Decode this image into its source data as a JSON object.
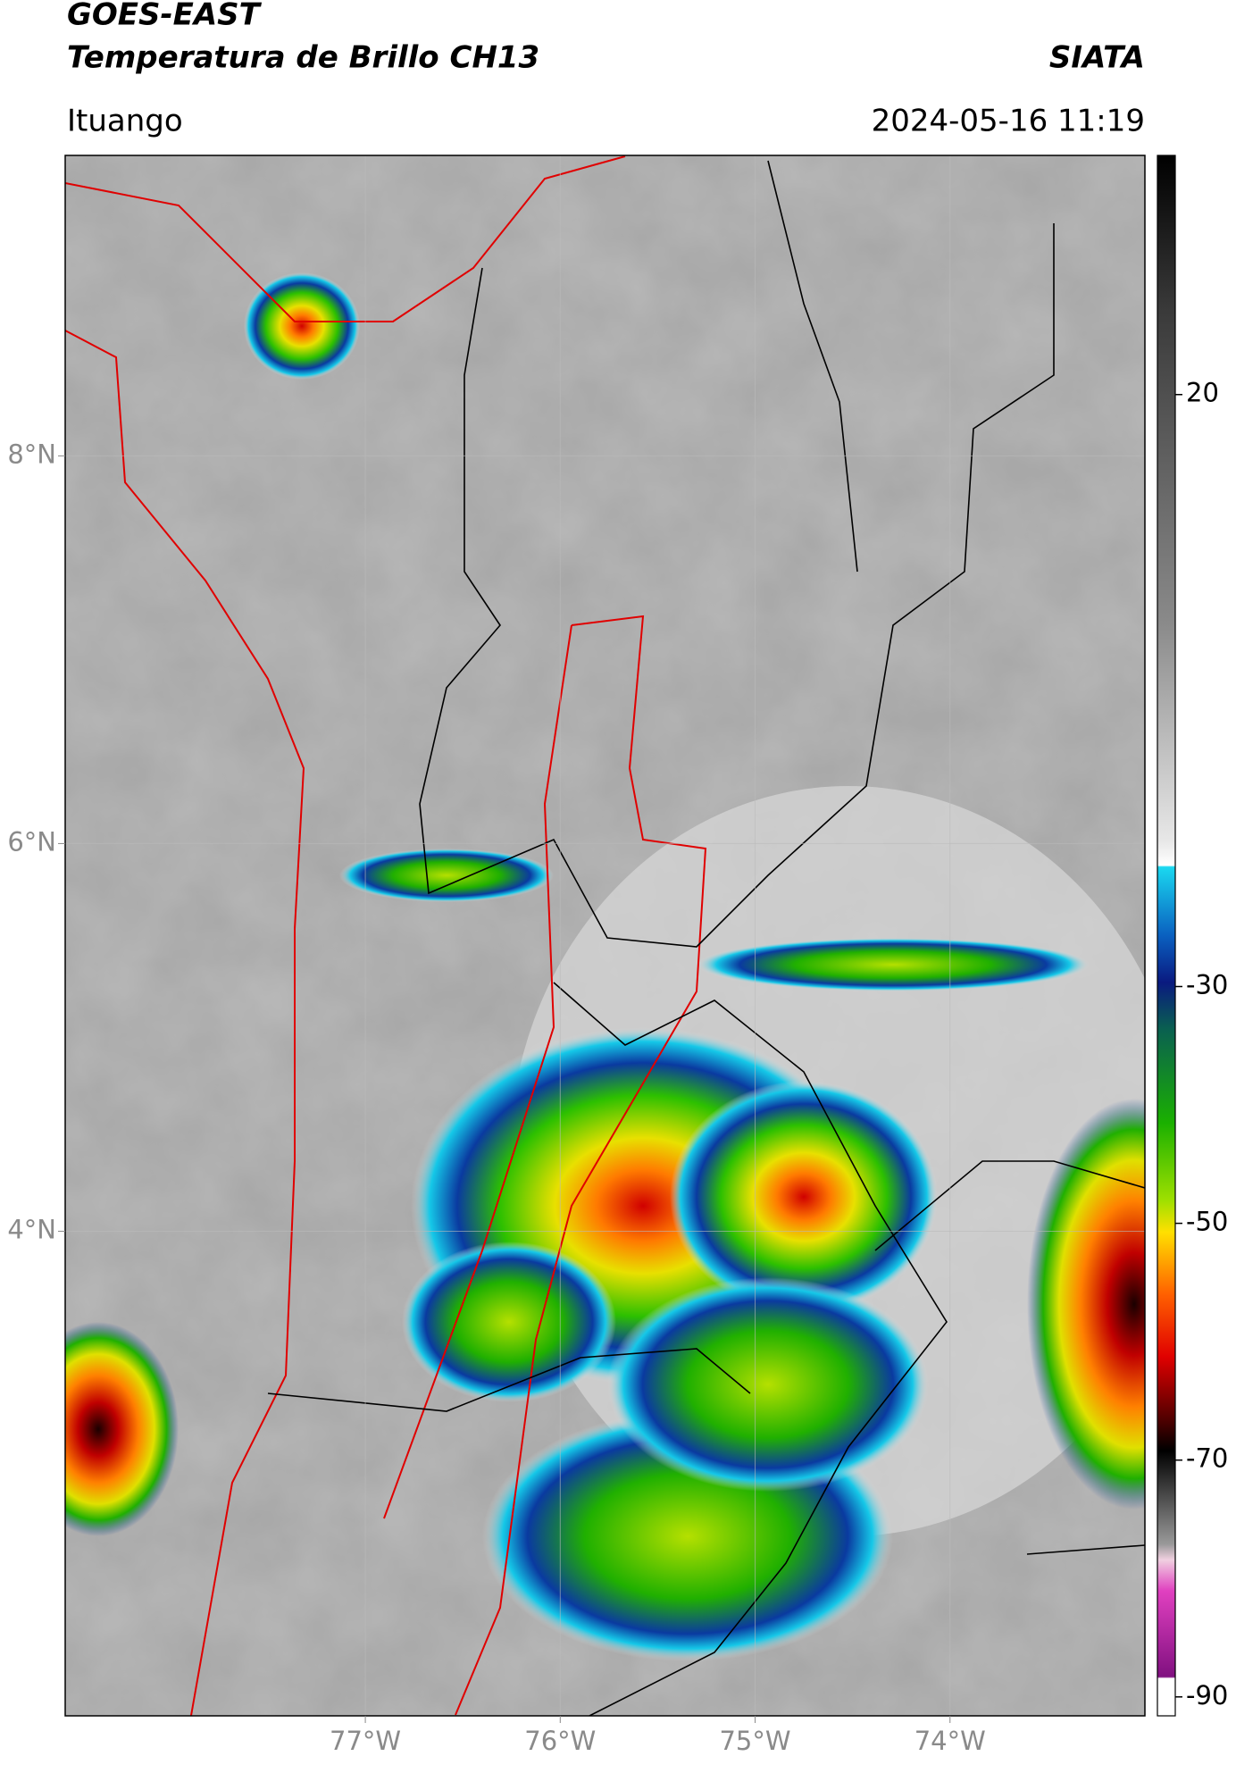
{
  "chart_data": {
    "type": "map",
    "title": "GOES-EAST",
    "subtitle": "Temperatura de Brillo CH13",
    "source": "SIATA",
    "location": "Ituango",
    "datetime": "2024-05-16 11:19",
    "xlim": [
      -78.54,
      -73.0
    ],
    "xticks": [
      {
        "value": -77,
        "label": "77°W"
      },
      {
        "value": -76,
        "label": "76°W"
      },
      {
        "value": -75,
        "label": "75°W"
      },
      {
        "value": -74,
        "label": "74°W"
      }
    ],
    "ylim": [
      1.5,
      9.55
    ],
    "yticks": [
      {
        "value": 8,
        "label": "8°N"
      },
      {
        "value": 6,
        "label": "6°N"
      },
      {
        "value": 4,
        "label": "4°N"
      }
    ],
    "grid": true,
    "colorbar": {
      "lim": [
        -91.6,
        40.2
      ],
      "ticks": [
        20,
        -30,
        -50,
        -70,
        -90
      ]
    }
  }
}
